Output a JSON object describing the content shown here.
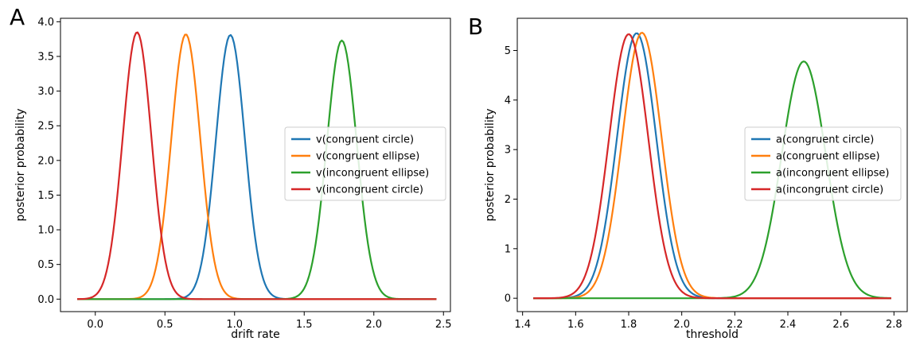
{
  "chart_data": [
    {
      "panel_letter": "A",
      "type": "line",
      "title": "",
      "xlabel": "drift rate",
      "ylabel": "posterior probability",
      "xlim": [
        -0.25,
        2.55
      ],
      "ylim": [
        -0.18,
        4.05
      ],
      "xticks": [
        0.0,
        0.5,
        1.0,
        1.5,
        2.0,
        2.5
      ],
      "xtick_labels": [
        "0.0",
        "0.5",
        "1.0",
        "1.5",
        "2.0",
        "2.5"
      ],
      "yticks": [
        0.0,
        0.5,
        1.0,
        1.5,
        2.0,
        2.5,
        3.0,
        3.5,
        4.0
      ],
      "ytick_labels": [
        "0.0",
        "0.5",
        "1.0",
        "1.5",
        "2.0",
        "2.5",
        "3.0",
        "3.5",
        "4.0"
      ],
      "grid": false,
      "legend_position": "center-right",
      "x_range": [
        -0.13,
        2.45
      ],
      "series": [
        {
          "name": "v(congruent circle)",
          "color": "#1f77b4",
          "peak_x": 0.97,
          "peak_y": 3.81,
          "sd": 0.104
        },
        {
          "name": "v(congruent ellipse)",
          "color": "#ff7f0e",
          "peak_x": 0.65,
          "peak_y": 3.82,
          "sd": 0.104
        },
        {
          "name": "v(incongruent ellipse)",
          "color": "#2ca02c",
          "peak_x": 1.77,
          "peak_y": 3.73,
          "sd": 0.107
        },
        {
          "name": "v(incongruent circle)",
          "color": "#d62728",
          "peak_x": 0.3,
          "peak_y": 3.85,
          "sd": 0.103
        }
      ]
    },
    {
      "panel_letter": "B",
      "type": "line",
      "title": "",
      "xlabel": "threshold",
      "ylabel": "posterior probability",
      "xlim": [
        1.38,
        2.85
      ],
      "ylim": [
        -0.27,
        5.65
      ],
      "xticks": [
        1.4,
        1.6,
        1.8,
        2.0,
        2.2,
        2.4,
        2.6,
        2.8
      ],
      "xtick_labels": [
        "1.4",
        "1.6",
        "1.8",
        "2.0",
        "2.2",
        "2.4",
        "2.6",
        "2.8"
      ],
      "yticks": [
        0,
        1,
        2,
        3,
        4,
        5
      ],
      "ytick_labels": [
        "0",
        "1",
        "2",
        "3",
        "4",
        "5"
      ],
      "grid": false,
      "legend_position": "center-right",
      "x_range": [
        1.44,
        2.79
      ],
      "series": [
        {
          "name": "a(congruent circle)",
          "color": "#1f77b4",
          "peak_x": 1.83,
          "peak_y": 5.35,
          "sd": 0.074
        },
        {
          "name": "a(congruent ellipse)",
          "color": "#ff7f0e",
          "peak_x": 1.85,
          "peak_y": 5.36,
          "sd": 0.074
        },
        {
          "name": "a(incongruent ellipse)",
          "color": "#2ca02c",
          "peak_x": 2.46,
          "peak_y": 4.78,
          "sd": 0.083
        },
        {
          "name": "a(incongruent circle)",
          "color": "#d62728",
          "peak_x": 1.8,
          "peak_y": 5.33,
          "sd": 0.074
        }
      ]
    }
  ]
}
